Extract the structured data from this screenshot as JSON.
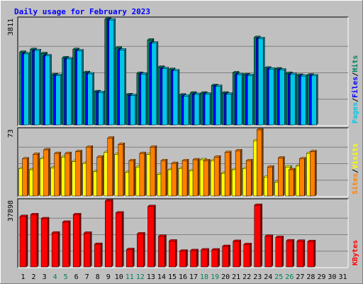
{
  "chart_data": [
    {
      "type": "bar",
      "title": "Daily usage for February 2023",
      "x": [
        "1",
        "2",
        "3",
        "4",
        "5",
        "6",
        "7",
        "8",
        "9",
        "10",
        "11",
        "12",
        "13",
        "14",
        "15",
        "16",
        "17",
        "18",
        "19",
        "20",
        "21",
        "22",
        "23",
        "24",
        "25",
        "26",
        "27",
        "28",
        "29",
        "30",
        "31"
      ],
      "weekend_days": [
        "4",
        "5",
        "11",
        "12",
        "18",
        "19",
        "25",
        "26"
      ],
      "ymax_label": "3811",
      "ylim": [
        0,
        3811
      ],
      "ylabel_parts": [
        "Pages",
        "Files",
        "Hits"
      ],
      "series": [
        {
          "name": "Hits",
          "color": "#00805c",
          "values": [
            2620,
            2720,
            2570,
            1810,
            2420,
            2720,
            1890,
            1200,
            3811,
            2770,
            1090,
            1860,
            3060,
            2080,
            2000,
            1080,
            1150,
            1150,
            1420,
            1150,
            1880,
            1810,
            3150,
            2050,
            2020,
            1860,
            1790,
            1800,
            null,
            null,
            null
          ]
        },
        {
          "name": "Files",
          "color": "#0000ff",
          "values": [
            2560,
            2680,
            2490,
            1780,
            2380,
            2670,
            1840,
            1170,
            3780,
            2700,
            1060,
            1830,
            2950,
            2030,
            1950,
            1040,
            1100,
            1110,
            1390,
            1110,
            1810,
            1780,
            3110,
            2010,
            1980,
            1820,
            1760,
            1770,
            null,
            null,
            null
          ]
        },
        {
          "name": "Pages",
          "color": "#00c8e8",
          "values": [
            2560,
            2680,
            2490,
            1780,
            2380,
            2670,
            1840,
            1170,
            3780,
            2700,
            1060,
            1830,
            2950,
            2030,
            1950,
            1040,
            1100,
            1110,
            1390,
            1110,
            1810,
            1780,
            3110,
            2010,
            1980,
            1820,
            1760,
            1770,
            null,
            null,
            null
          ]
        }
      ]
    },
    {
      "type": "bar",
      "ymax_label": "73",
      "ylim": [
        0,
        73
      ],
      "ylabel_parts": [
        "Sites",
        "Visits"
      ],
      "series": [
        {
          "name": "Visits",
          "color": "#ffff00",
          "values": [
            30,
            29,
            41,
            31,
            43,
            38,
            36,
            27,
            48,
            46,
            26,
            32,
            46,
            24,
            29,
            30,
            28,
            40,
            39,
            25,
            29,
            30,
            61,
            21,
            15,
            32,
            33,
            47,
            null,
            null,
            null
          ]
        },
        {
          "name": "Sites",
          "color": "#ff8000",
          "values": [
            41,
            46,
            51,
            47,
            47,
            49,
            54,
            43,
            64,
            57,
            39,
            47,
            54,
            39,
            36,
            39,
            40,
            39,
            43,
            48,
            50,
            39,
            73,
            32,
            42,
            29,
            41,
            49,
            null,
            null,
            null
          ]
        }
      ]
    },
    {
      "type": "bar",
      "ymax_label": "37898",
      "ylim": [
        0,
        37898
      ],
      "ylabel_parts": [
        "KBytes"
      ],
      "series": [
        {
          "name": "KBytes",
          "color": "#ff0000",
          "values": [
            29000,
            30000,
            27700,
            19500,
            25700,
            30000,
            19400,
            13000,
            37898,
            31000,
            10000,
            19000,
            34700,
            17600,
            14900,
            9100,
            9400,
            9800,
            9800,
            11800,
            14700,
            12900,
            35400,
            17600,
            17000,
            15000,
            14800,
            14600,
            null,
            null,
            null
          ]
        }
      ]
    }
  ],
  "colors": {
    "background": "#c0c0c0",
    "plot_area": "#c0c0c0",
    "grid": "#808080",
    "title": "#0000ff",
    "day_weekday": "#000000",
    "day_weekend": "#00805c"
  }
}
